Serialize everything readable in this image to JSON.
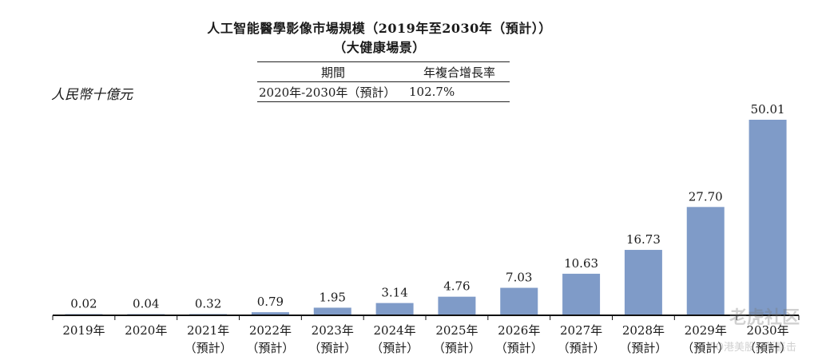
{
  "header": {
    "title_line1": "人工智能醫學影像市場規模（2019年至2030年（預計））",
    "title_line2": "（大健康場景）",
    "unit": "人民幣十億元"
  },
  "cagr_table": {
    "col1_header": "期間",
    "col2_header": "年複合增長率",
    "period": "2020年-2030年（預計）",
    "rate": "102.7%"
  },
  "watermark": {
    "brand": "老虎社区",
    "handle": "@IPO港美股打新喜击"
  },
  "chart_data": {
    "type": "bar",
    "title": "人工智能醫學影像市場規模（2019年至2030年（預計））",
    "ylabel": "人民幣十億元",
    "categories": [
      "2019年",
      "2020年",
      "2021年",
      "2022年",
      "2023年",
      "2024年",
      "2025年",
      "2026年",
      "2027年",
      "2028年",
      "2029年",
      "2030年"
    ],
    "category_sublabels": [
      "",
      "",
      "（預計）",
      "（預計）",
      "（預計）",
      "（預計）",
      "（預計）",
      "（預計）",
      "（預計）",
      "（預計）",
      "（預計）",
      "（預計）"
    ],
    "values": [
      0.02,
      0.04,
      0.32,
      0.79,
      1.95,
      3.14,
      4.76,
      7.03,
      10.63,
      16.73,
      27.7,
      50.01
    ],
    "value_labels": [
      "0.02",
      "0.04",
      "0.32",
      "0.79",
      "1.95",
      "3.14",
      "4.76",
      "7.03",
      "10.63",
      "16.73",
      "27.70",
      "50.01"
    ],
    "ylim": [
      0,
      50.01
    ],
    "bar_color": "#7f9bc8",
    "grid": false
  }
}
